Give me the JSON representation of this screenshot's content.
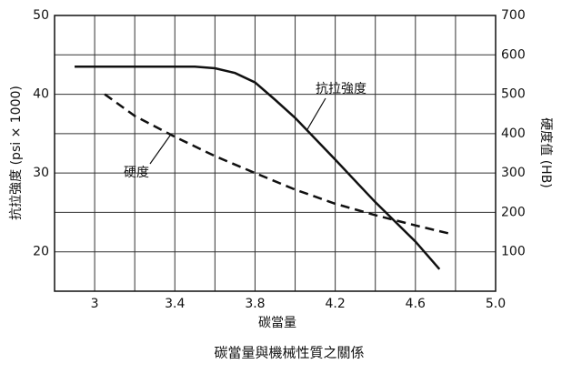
{
  "chart_data": {
    "type": "line",
    "title": "碳當量與機械性質之關係",
    "x_label": "碳當量",
    "y_label": "抗拉強度 (psi × 1000)",
    "y2_label": "硬度值 (HB)",
    "xlim": [
      2.8,
      5.0
    ],
    "xticks": [
      3.0,
      3.4,
      3.8,
      4.2,
      4.6,
      {
        "value": 5.0,
        "label": "5.0"
      }
    ],
    "xgrid_minor": [
      2.8,
      3.2,
      3.6,
      4.0,
      4.4,
      4.8
    ],
    "ylim": [
      15,
      50
    ],
    "yticks": [
      20,
      30,
      40,
      50
    ],
    "y2lim": [
      0,
      700
    ],
    "y2ticks": [
      100,
      200,
      300,
      400,
      500,
      600,
      700
    ],
    "grid": true,
    "series": [
      {
        "name": "抗拉強度",
        "color": "#111111",
        "style": "solid",
        "x": [
          2.9,
          3.5,
          3.6,
          3.7,
          3.8,
          3.9,
          4.0,
          4.2,
          4.4,
          4.6,
          4.72
        ],
        "values": [
          43.5,
          43.5,
          43.3,
          42.7,
          41.5,
          39.3,
          37,
          31.7,
          26.3,
          21.3,
          17.8
        ]
      },
      {
        "name": "硬度",
        "color": "#111111",
        "style": "dashed",
        "axis": "y2",
        "x": [
          3.05,
          3.2,
          3.4,
          3.6,
          3.8,
          4.0,
          4.2,
          4.4,
          4.6,
          4.78
        ],
        "values": [
          500,
          445,
          392,
          343,
          300,
          258,
          222,
          193,
          167,
          145
        ]
      }
    ]
  }
}
